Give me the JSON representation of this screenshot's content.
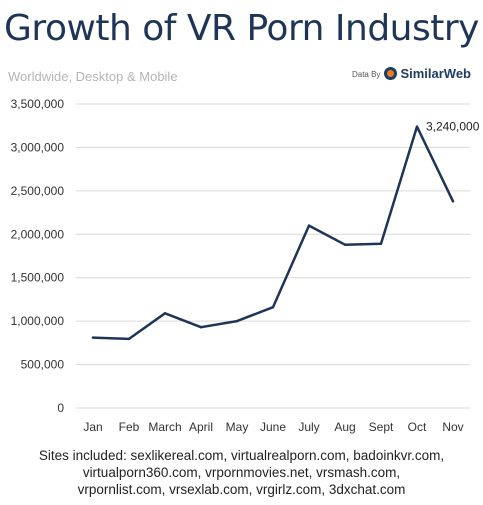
{
  "header": {
    "title": "Growth of VR Porn Industry",
    "subtitle": "Worldwide, Desktop & Mobile",
    "credit_prefix": "Data By",
    "credit_brand": "SimilarWeb"
  },
  "footer": {
    "lines": [
      "Sites included: sexlikereal.com, virtualrealporn.com, badoinkvr.com,",
      "virtualporn360.com, vrpornmovies.net, vrsmash.com,",
      "vrpornlist.com, vrsexlab.com, vrgirlz.com, 3dxchat.com"
    ]
  },
  "colors": {
    "line": "#1f3558",
    "title": "#1f3558",
    "brand": "#1d3d63",
    "brand_accent": "#f27a21"
  },
  "chart_data": {
    "type": "line",
    "title": "Growth of VR Porn Industry",
    "subtitle": "Worldwide, Desktop & Mobile",
    "categories": [
      "Jan",
      "Feb",
      "March",
      "April",
      "May",
      "June",
      "July",
      "Aug",
      "Sept",
      "Oct",
      "Nov"
    ],
    "values": [
      810000,
      795000,
      1090000,
      930000,
      1000000,
      1160000,
      2100000,
      1880000,
      1890000,
      3240000,
      2380000
    ],
    "ylim": [
      0,
      3500000
    ],
    "yticks": [
      0,
      500000,
      1000000,
      1500000,
      2000000,
      2500000,
      3000000,
      3500000
    ],
    "ytick_labels": [
      "0",
      "500,000",
      "1,000,000",
      "1,500,000",
      "2,000,000",
      "2,500,000",
      "3,000,000",
      "3,500,000"
    ],
    "grid": true,
    "annotations": [
      {
        "category": "Oct",
        "text": "3,240,000"
      }
    ],
    "xlabel": "",
    "ylabel": ""
  }
}
